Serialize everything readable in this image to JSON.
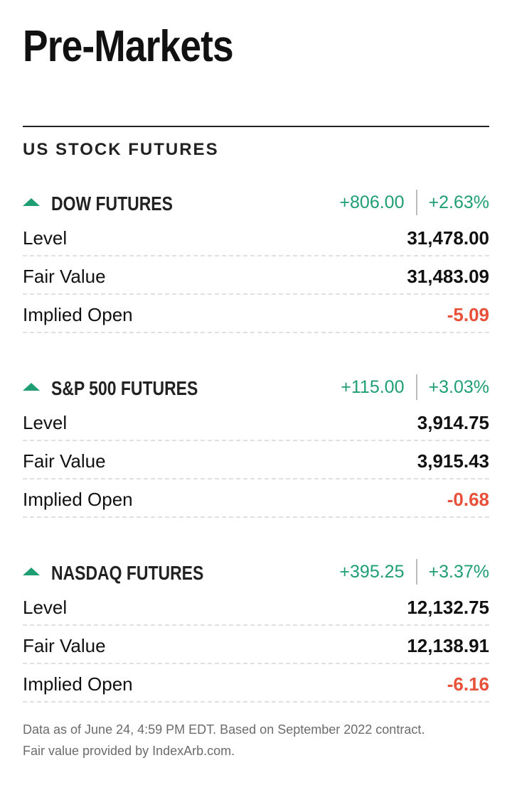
{
  "page": {
    "title": "Pre-Markets",
    "section_heading": "US STOCK FUTURES"
  },
  "colors": {
    "positive": "#1f9e73",
    "negative": "#e8503a",
    "text": "#111111",
    "muted": "#6b6b6b"
  },
  "futures": [
    {
      "name": "DOW FUTURES",
      "trend_icon": "triangle-up-icon",
      "change_points": "+806.00",
      "change_percent": "+2.63%",
      "rows": [
        {
          "label": "Level",
          "value": "31,478.00"
        },
        {
          "label": "Fair Value",
          "value": "31,483.09"
        },
        {
          "label": "Implied Open",
          "value": "-5.09"
        }
      ]
    },
    {
      "name": "S&P 500 FUTURES",
      "trend_icon": "triangle-up-icon",
      "change_points": "+115.00",
      "change_percent": "+3.03%",
      "rows": [
        {
          "label": "Level",
          "value": "3,914.75"
        },
        {
          "label": "Fair Value",
          "value": "3,915.43"
        },
        {
          "label": "Implied Open",
          "value": "-0.68"
        }
      ]
    },
    {
      "name": "NASDAQ FUTURES",
      "trend_icon": "triangle-up-icon",
      "change_points": "+395.25",
      "change_percent": "+3.37%",
      "rows": [
        {
          "label": "Level",
          "value": "12,132.75"
        },
        {
          "label": "Fair Value",
          "value": "12,138.91"
        },
        {
          "label": "Implied Open",
          "value": "-6.16"
        }
      ]
    }
  ],
  "footnote": {
    "line1": "Data as of June 24, 4:59 PM EDT. Based on September 2022 contract.",
    "line2": "Fair value provided by IndexArb.com."
  }
}
